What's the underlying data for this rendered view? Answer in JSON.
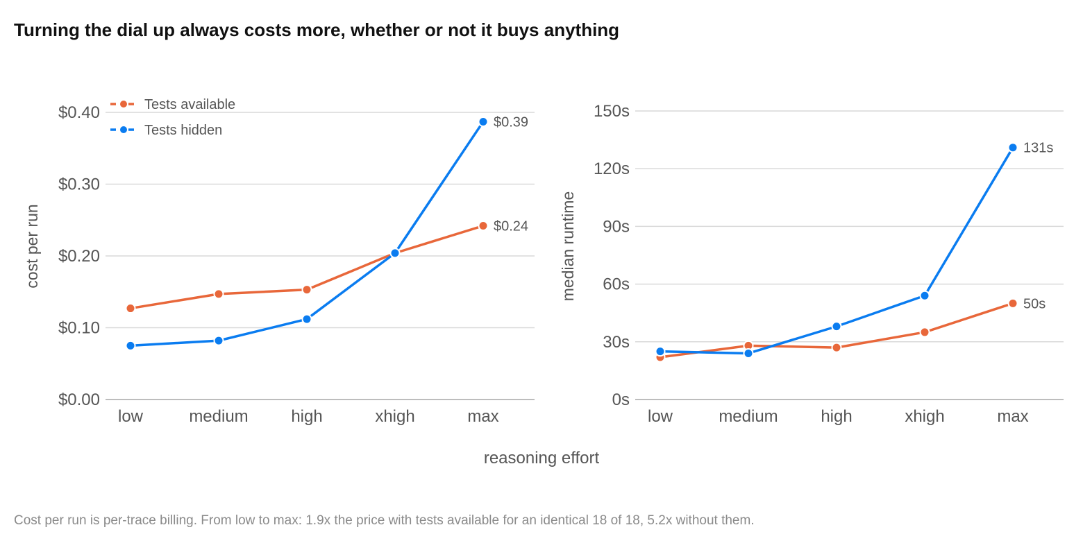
{
  "title": "Turning the dial up always costs more, whether or not it buys anything",
  "footnote": "Cost per run is per-trace billing. From low to max: 1.9x the price with tests available for an identical 18 of 18, 5.2x without them.",
  "shared_xlabel": "reasoning effort",
  "colors": {
    "tests_available": "#E8673A",
    "tests_hidden": "#0A7CF0",
    "grid": "#d9d9d9",
    "axis": "#bdbdbd",
    "text": "#555555"
  },
  "chart_data": [
    {
      "type": "line",
      "categories": [
        "low",
        "medium",
        "high",
        "xhigh",
        "max"
      ],
      "ylabel": "cost per run",
      "ylim": [
        0,
        0.4
      ],
      "yticks": [
        0,
        0.1,
        0.2,
        0.3,
        0.4
      ],
      "ytick_labels": [
        "$0.00",
        "$0.10",
        "$0.20",
        "$0.30",
        "$0.40"
      ],
      "grid": true,
      "legend": "top-left",
      "series": [
        {
          "name": "Tests available",
          "color": "#E8673A",
          "values": [
            0.127,
            0.147,
            0.153,
            0.204,
            0.242
          ],
          "end_label": "$0.24"
        },
        {
          "name": "Tests hidden",
          "color": "#0A7CF0",
          "values": [
            0.075,
            0.082,
            0.112,
            0.204,
            0.387
          ],
          "end_label": "$0.39"
        }
      ]
    },
    {
      "type": "line",
      "categories": [
        "low",
        "medium",
        "high",
        "xhigh",
        "max"
      ],
      "ylabel": "median runtime",
      "ylim": [
        0,
        150
      ],
      "yticks": [
        0,
        30,
        60,
        90,
        120,
        150
      ],
      "ytick_labels": [
        "0s",
        "30s",
        "60s",
        "90s",
        "120s",
        "150s"
      ],
      "grid": true,
      "series": [
        {
          "name": "Tests available",
          "color": "#E8673A",
          "values": [
            22,
            28,
            27,
            35,
            50
          ],
          "end_label": "50s"
        },
        {
          "name": "Tests hidden",
          "color": "#0A7CF0",
          "values": [
            25,
            24,
            38,
            54,
            131
          ],
          "end_label": "131s"
        }
      ]
    }
  ]
}
